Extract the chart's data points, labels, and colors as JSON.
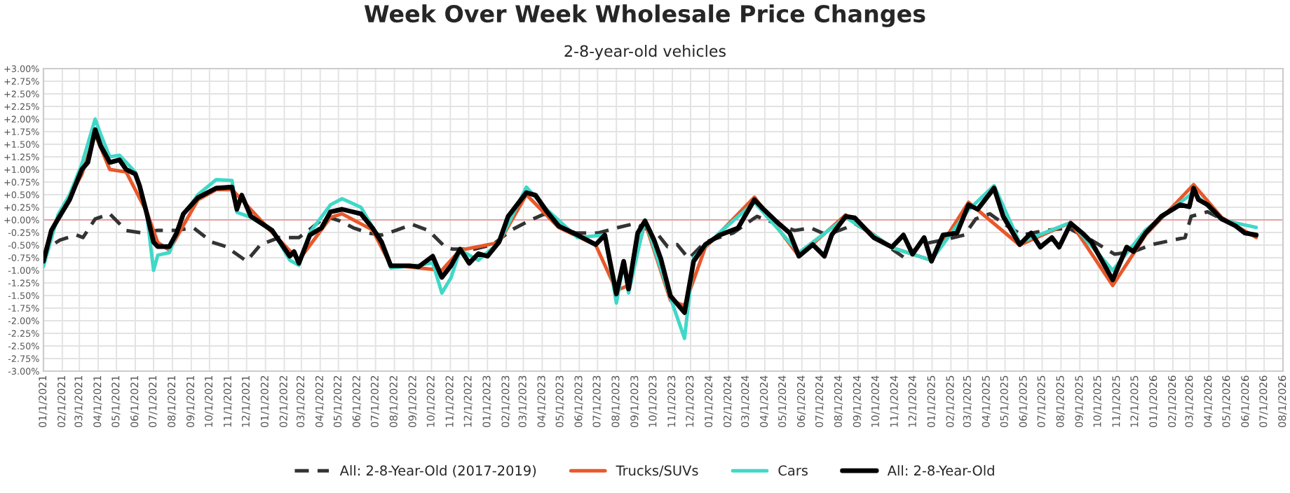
{
  "chart_data": {
    "type": "line",
    "title": "Week Over Week Wholesale Price Changes",
    "subtitle": "2-8-year-old vehicles",
    "xlim": [
      "2021-01-01",
      "2026-08-01"
    ],
    "xticks": [
      {
        "value": "2021-01-01",
        "label": "01/1/2021"
      },
      {
        "value": "2021-02-01",
        "label": "02/1/2021"
      },
      {
        "value": "2021-03-01",
        "label": "03/1/2021"
      },
      {
        "value": "2021-04-01",
        "label": "04/1/2021"
      },
      {
        "value": "2021-05-01",
        "label": "05/1/2021"
      },
      {
        "value": "2021-06-01",
        "label": "06/1/2021"
      },
      {
        "value": "2021-07-01",
        "label": "07/1/2021"
      },
      {
        "value": "2021-08-01",
        "label": "08/1/2021"
      },
      {
        "value": "2021-09-01",
        "label": "09/1/2021"
      },
      {
        "value": "2021-10-01",
        "label": "10/1/2021"
      },
      {
        "value": "2021-11-01",
        "label": "11/1/2021"
      },
      {
        "value": "2021-12-01",
        "label": "12/1/2021"
      },
      {
        "value": "2022-01-01",
        "label": "01/1/2022"
      },
      {
        "value": "2022-02-01",
        "label": "02/1/2022"
      },
      {
        "value": "2022-03-01",
        "label": "03/1/2022"
      },
      {
        "value": "2022-04-01",
        "label": "04/1/2022"
      },
      {
        "value": "2022-05-01",
        "label": "05/1/2022"
      },
      {
        "value": "2022-06-01",
        "label": "06/1/2022"
      },
      {
        "value": "2022-07-01",
        "label": "07/1/2022"
      },
      {
        "value": "2022-08-01",
        "label": "08/1/2022"
      },
      {
        "value": "2022-09-01",
        "label": "09/1/2022"
      },
      {
        "value": "2022-10-01",
        "label": "10/1/2022"
      },
      {
        "value": "2022-11-01",
        "label": "11/1/2022"
      },
      {
        "value": "2022-12-01",
        "label": "12/1/2022"
      },
      {
        "value": "2023-01-01",
        "label": "01/1/2023"
      },
      {
        "value": "2023-02-01",
        "label": "02/1/2023"
      },
      {
        "value": "2023-03-01",
        "label": "03/1/2023"
      },
      {
        "value": "2023-04-01",
        "label": "04/1/2023"
      },
      {
        "value": "2023-05-01",
        "label": "05/1/2023"
      },
      {
        "value": "2023-06-01",
        "label": "06/1/2023"
      },
      {
        "value": "2023-07-01",
        "label": "07/1/2023"
      },
      {
        "value": "2023-08-01",
        "label": "08/1/2023"
      },
      {
        "value": "2023-09-01",
        "label": "09/1/2023"
      },
      {
        "value": "2023-10-01",
        "label": "10/1/2023"
      },
      {
        "value": "2023-11-01",
        "label": "11/1/2023"
      },
      {
        "value": "2023-12-01",
        "label": "12/1/2023"
      },
      {
        "value": "2024-01-01",
        "label": "01/1/2024"
      },
      {
        "value": "2024-02-01",
        "label": "02/1/2024"
      },
      {
        "value": "2024-03-01",
        "label": "03/1/2024"
      },
      {
        "value": "2024-04-01",
        "label": "04/1/2024"
      },
      {
        "value": "2024-05-01",
        "label": "05/1/2024"
      },
      {
        "value": "2024-06-01",
        "label": "06/1/2024"
      },
      {
        "value": "2024-07-01",
        "label": "07/1/2024"
      },
      {
        "value": "2024-08-01",
        "label": "08/1/2024"
      },
      {
        "value": "2024-09-01",
        "label": "09/1/2024"
      },
      {
        "value": "2024-10-01",
        "label": "10/1/2024"
      },
      {
        "value": "2024-11-01",
        "label": "11/1/2024"
      },
      {
        "value": "2024-12-01",
        "label": "12/1/2024"
      },
      {
        "value": "2025-01-01",
        "label": "01/1/2025"
      },
      {
        "value": "2025-02-01",
        "label": "02/1/2025"
      },
      {
        "value": "2025-03-01",
        "label": "03/1/2025"
      },
      {
        "value": "2025-04-01",
        "label": "04/1/2025"
      },
      {
        "value": "2025-05-01",
        "label": "05/1/2025"
      },
      {
        "value": "2025-06-01",
        "label": "06/1/2025"
      },
      {
        "value": "2025-07-01",
        "label": "07/1/2025"
      },
      {
        "value": "2025-08-01",
        "label": "08/1/2025"
      },
      {
        "value": "2025-09-01",
        "label": "09/1/2025"
      },
      {
        "value": "2025-10-01",
        "label": "10/1/2025"
      },
      {
        "value": "2025-11-01",
        "label": "11/1/2025"
      },
      {
        "value": "2025-12-01",
        "label": "12/1/2025"
      },
      {
        "value": "2026-01-01",
        "label": "01/1/2026"
      },
      {
        "value": "2026-02-01",
        "label": "02/1/2026"
      },
      {
        "value": "2026-03-01",
        "label": "03/1/2026"
      },
      {
        "value": "2026-04-01",
        "label": "04/1/2026"
      },
      {
        "value": "2026-05-01",
        "label": "05/1/2026"
      },
      {
        "value": "2026-06-01",
        "label": "06/1/2026"
      },
      {
        "value": "2026-07-01",
        "label": "07/1/2026"
      },
      {
        "value": "2026-08-01",
        "label": "08/1/2026"
      }
    ],
    "ylim": [
      -3,
      3
    ],
    "yticks": [
      {
        "value": 3,
        "label": "+3.00%"
      },
      {
        "value": 2.75,
        "label": "+2.75%"
      },
      {
        "value": 2.5,
        "label": "+2.50%"
      },
      {
        "value": 2.25,
        "label": "+2.25%"
      },
      {
        "value": 2,
        "label": "+2.00%"
      },
      {
        "value": 1.75,
        "label": "+1.75%"
      },
      {
        "value": 1.5,
        "label": "+1.50%"
      },
      {
        "value": 1.25,
        "label": "+1.25%"
      },
      {
        "value": 1,
        "label": "+1.00%"
      },
      {
        "value": 0.75,
        "label": "+0.75%"
      },
      {
        "value": 0.5,
        "label": "+0.50%"
      },
      {
        "value": 0.25,
        "label": "+0.25%"
      },
      {
        "value": 0,
        "label": "+0.00%"
      },
      {
        "value": -0.25,
        "label": "-0.25%"
      },
      {
        "value": -0.5,
        "label": "-0.50%"
      },
      {
        "value": -0.75,
        "label": "-0.75%"
      },
      {
        "value": -1,
        "label": "-1.00%"
      },
      {
        "value": -1.25,
        "label": "-1.25%"
      },
      {
        "value": -1.5,
        "label": "-1.50%"
      },
      {
        "value": -1.75,
        "label": "-1.75%"
      },
      {
        "value": -2,
        "label": "-2.00%"
      },
      {
        "value": -2.25,
        "label": "-2.25%"
      },
      {
        "value": -2.5,
        "label": "-2.50%"
      },
      {
        "value": -2.75,
        "label": "-2.75%"
      },
      {
        "value": -3,
        "label": "-3.00%"
      }
    ],
    "grid": true,
    "legend": "bottom",
    "marker": "none",
    "ref_lines": [
      {
        "axis": "y",
        "value": 0,
        "color": "#e8a0a0"
      }
    ],
    "series": [
      {
        "name": "All: 2-8-Year-Old (2017-2019)",
        "color": "#333333",
        "line_style": "dashed",
        "x": [
          "2021-01-01",
          "2021-01-10",
          "2021-01-28",
          "2021-02-24",
          "2021-03-07",
          "2021-03-27",
          "2021-04-20",
          "2021-05-17",
          "2021-06-13",
          "2021-07-06",
          "2021-08-04",
          "2021-09-05",
          "2021-10-05",
          "2021-10-28",
          "2021-12-01",
          "2021-12-24",
          "2022-01-24",
          "2022-02-25",
          "2022-03-18",
          "2022-04-10",
          "2022-05-03",
          "2022-05-26",
          "2022-06-19",
          "2022-07-11",
          "2022-08-03",
          "2022-08-30",
          "2022-09-26",
          "2022-10-23",
          "2022-11-05",
          "2022-12-10",
          "2023-01-10",
          "2023-02-08",
          "2023-03-10",
          "2023-04-05",
          "2023-04-25",
          "2023-05-25",
          "2023-07-02",
          "2023-08-01",
          "2023-09-01",
          "2023-10-09",
          "2023-10-24",
          "2023-11-09",
          "2023-11-28",
          "2023-12-25",
          "2024-02-09",
          "2024-03-19",
          "2024-04-19",
          "2024-05-20",
          "2024-06-16",
          "2024-07-12",
          "2024-08-12",
          "2024-08-27",
          "2024-09-27",
          "2024-10-27",
          "2024-11-19",
          "2024-12-12",
          "2025-01-19",
          "2025-02-23",
          "2025-03-14",
          "2025-04-06",
          "2025-04-28",
          "2025-05-29",
          "2025-07-06",
          "2025-08-13",
          "2025-09-20",
          "2025-10-28",
          "2025-11-28",
          "2025-12-28",
          "2026-02-21",
          "2026-03-03",
          "2026-03-30",
          "2026-04-22"
        ],
        "values": [
          -0.82,
          -0.54,
          -0.4,
          -0.3,
          -0.35,
          0.02,
          0.12,
          -0.21,
          -0.26,
          -0.21,
          -0.21,
          -0.16,
          -0.44,
          -0.53,
          -0.82,
          -0.49,
          -0.35,
          -0.35,
          -0.16,
          0.07,
          -0.02,
          -0.16,
          -0.26,
          -0.3,
          -0.21,
          -0.09,
          -0.21,
          -0.53,
          -0.58,
          -0.58,
          -0.49,
          -0.21,
          -0.02,
          0.12,
          -0.07,
          -0.26,
          -0.26,
          -0.16,
          -0.07,
          -0.3,
          -0.53,
          -0.49,
          -0.77,
          -0.44,
          -0.26,
          0.07,
          -0.07,
          -0.21,
          -0.16,
          -0.3,
          -0.16,
          -0.07,
          -0.3,
          -0.58,
          -0.77,
          -0.49,
          -0.4,
          -0.3,
          0.02,
          0.12,
          -0.07,
          -0.3,
          -0.21,
          -0.16,
          -0.4,
          -0.68,
          -0.63,
          -0.49,
          -0.35,
          0.07,
          0.16,
          0.02
        ]
      },
      {
        "name": "Trucks/SUVs",
        "color": "#e8582a",
        "line_style": "solid",
        "x": [
          "2021-01-01",
          "2021-01-14",
          "2021-03-05",
          "2021-03-27",
          "2021-04-20",
          "2021-05-17",
          "2021-06-20",
          "2021-07-08",
          "2021-07-27",
          "2021-09-12",
          "2021-10-12",
          "2021-11-07",
          "2021-11-23",
          "2022-01-12",
          "2022-02-25",
          "2022-04-18",
          "2022-05-07",
          "2022-06-26",
          "2022-07-26",
          "2022-09-10",
          "2022-10-18",
          "2022-11-17",
          "2023-01-20",
          "2023-03-06",
          "2023-04-28",
          "2023-06-28",
          "2023-08-01",
          "2023-08-21",
          "2023-09-17",
          "2023-10-29",
          "2023-11-21",
          "2023-12-25",
          "2024-03-15",
          "2024-05-27",
          "2024-08-12",
          "2024-10-27",
          "2024-12-31",
          "2025-03-02",
          "2025-04-13",
          "2025-05-25",
          "2025-08-17",
          "2025-10-25",
          "2025-12-18",
          "2026-03-07",
          "2026-04-22",
          "2026-06-18"
        ],
        "values": [
          -0.75,
          -0.2,
          0.9,
          1.7,
          1.0,
          0.95,
          0.15,
          -0.45,
          -0.6,
          0.4,
          0.6,
          0.6,
          0.4,
          -0.25,
          -0.8,
          0.05,
          0.12,
          -0.2,
          -0.9,
          -0.95,
          -1.0,
          -0.6,
          -0.45,
          0.5,
          -0.15,
          -0.5,
          -1.4,
          -1.3,
          -0.05,
          -1.6,
          -1.7,
          -0.55,
          0.45,
          -0.72,
          0.1,
          -0.55,
          -0.8,
          0.35,
          null,
          -0.5,
          -0.05,
          -1.3,
          -0.3,
          0.7,
          0.05,
          -0.35
        ]
      },
      {
        "name": "Cars",
        "color": "#40d8c8",
        "line_style": "solid",
        "x": [
          "2021-01-01",
          "2021-01-25",
          "2021-02-13",
          "2021-03-05",
          "2021-03-27",
          "2021-04-05",
          "2021-04-20",
          "2021-05-06",
          "2021-06-01",
          "2021-06-20",
          "2021-07-01",
          "2021-07-08",
          "2021-07-27",
          "2021-08-19",
          "2021-09-12",
          "2021-10-12",
          "2021-11-07",
          "2021-11-15",
          "2021-12-08",
          "2022-01-12",
          "2022-02-10",
          "2022-02-25",
          "2022-03-15",
          "2022-04-18",
          "2022-05-07",
          "2022-06-07",
          "2022-07-11",
          "2022-07-26",
          "2022-09-10",
          "2022-10-03",
          "2022-10-18",
          "2022-11-02",
          "2022-11-17",
          "2022-12-17",
          "2023-01-20",
          "2023-03-06",
          "2023-04-09",
          "2023-05-29",
          "2023-07-13",
          "2023-08-01",
          "2023-08-13",
          "2023-08-21",
          "2023-09-17",
          "2023-10-29",
          "2023-11-21",
          "2023-12-06",
          "2024-01-18",
          "2024-03-15",
          "2024-05-27",
          "2024-08-12",
          "2024-09-27",
          "2024-10-27",
          "2024-12-31",
          "2025-03-02",
          "2025-04-13",
          "2025-05-25",
          "2025-08-17",
          "2025-10-25",
          "2025-12-18",
          "2026-03-07",
          "2026-04-22",
          "2026-06-18"
        ],
        "values": [
          -0.92,
          0.1,
          0.5,
          1.1,
          2.0,
          1.7,
          1.25,
          1.28,
          0.95,
          0.1,
          -1.0,
          -0.7,
          -0.65,
          0.1,
          0.5,
          0.8,
          0.78,
          0.15,
          0.05,
          -0.2,
          -0.8,
          -0.9,
          -0.25,
          0.3,
          0.42,
          0.25,
          -0.45,
          -0.95,
          -0.9,
          -0.85,
          -1.45,
          -1.15,
          -0.6,
          -0.8,
          -0.45,
          0.65,
          0.2,
          -0.35,
          -0.3,
          -1.65,
          -0.85,
          -1.45,
          0.0,
          -1.55,
          -2.35,
          -0.75,
          -0.25,
          0.35,
          -0.65,
          0.05,
          -0.3,
          -0.55,
          -0.8,
          0.2,
          0.68,
          -0.45,
          -0.05,
          -1.0,
          -0.2,
          0.55,
          0.0,
          -0.15
        ]
      },
      {
        "name": "All: 2-8-Year-Old",
        "color": "#000000",
        "line_style": "solid",
        "x": [
          "2021-01-01",
          "2021-01-14",
          "2021-01-25",
          "2021-02-13",
          "2021-03-05",
          "2021-03-15",
          "2021-03-27",
          "2021-04-05",
          "2021-04-20",
          "2021-05-06",
          "2021-05-17",
          "2021-06-01",
          "2021-06-08",
          "2021-06-20",
          "2021-07-01",
          "2021-07-08",
          "2021-07-27",
          "2021-08-08",
          "2021-08-19",
          "2021-09-12",
          "2021-10-12",
          "2021-11-07",
          "2021-11-15",
          "2021-11-23",
          "2021-12-08",
          "2022-01-01",
          "2022-01-12",
          "2022-02-10",
          "2022-02-17",
          "2022-02-25",
          "2022-03-15",
          "2022-04-03",
          "2022-04-18",
          "2022-05-07",
          "2022-06-07",
          "2022-06-26",
          "2022-07-11",
          "2022-07-26",
          "2022-08-26",
          "2022-09-10",
          "2022-10-03",
          "2022-10-18",
          "2022-11-02",
          "2022-11-17",
          "2022-12-02",
          "2022-12-17",
          "2023-01-01",
          "2023-01-20",
          "2023-02-04",
          "2023-03-06",
          "2023-03-21",
          "2023-04-09",
          "2023-04-28",
          "2023-05-29",
          "2023-06-28",
          "2023-07-13",
          "2023-08-01",
          "2023-08-13",
          "2023-08-21",
          "2023-09-05",
          "2023-09-17",
          "2023-10-02",
          "2023-10-13",
          "2023-10-29",
          "2023-11-21",
          "2023-12-06",
          "2023-12-25",
          "2024-01-18",
          "2024-02-17",
          "2024-03-15",
          "2024-03-30",
          "2024-04-19",
          "2024-05-12",
          "2024-05-27",
          "2024-06-19",
          "2024-07-08",
          "2024-07-20",
          "2024-08-12",
          "2024-08-27",
          "2024-09-27",
          "2024-10-27",
          "2024-11-15",
          "2024-11-30",
          "2024-12-19",
          "2024-12-31",
          "2025-01-19",
          "2025-02-11",
          "2025-03-02",
          "2025-03-17",
          "2025-04-13",
          "2025-04-28",
          "2025-05-25",
          "2025-06-13",
          "2025-06-28",
          "2025-07-17",
          "2025-07-29",
          "2025-08-17",
          "2025-09-05",
          "2025-09-20",
          "2025-10-25",
          "2025-11-17",
          "2025-11-28",
          "2025-12-18",
          "2026-01-13",
          "2026-02-13",
          "2026-02-28",
          "2026-03-07",
          "2026-03-15",
          "2026-03-30",
          "2026-04-22",
          "2026-05-15",
          "2026-05-30",
          "2026-06-18"
        ],
        "values": [
          -0.82,
          -0.21,
          0.02,
          0.4,
          1.0,
          1.14,
          1.79,
          1.47,
          1.14,
          1.19,
          1.0,
          0.91,
          0.68,
          0.12,
          -0.44,
          -0.53,
          -0.53,
          -0.26,
          0.12,
          0.44,
          0.63,
          0.65,
          0.21,
          0.49,
          0.07,
          -0.12,
          -0.21,
          -0.72,
          -0.63,
          -0.86,
          -0.3,
          -0.16,
          0.16,
          0.21,
          0.12,
          -0.16,
          -0.44,
          -0.91,
          -0.91,
          -0.93,
          -0.72,
          -1.14,
          -0.91,
          -0.58,
          -0.86,
          -0.67,
          -0.72,
          -0.44,
          0.07,
          0.54,
          0.49,
          0.16,
          -0.12,
          -0.3,
          -0.49,
          -0.3,
          -1.47,
          -0.82,
          -1.37,
          -0.26,
          -0.02,
          -0.4,
          -0.77,
          -1.51,
          -1.84,
          -0.82,
          -0.49,
          -0.3,
          -0.16,
          0.4,
          0.21,
          -0.02,
          -0.26,
          -0.72,
          -0.49,
          -0.72,
          -0.3,
          0.07,
          0.04,
          -0.35,
          -0.54,
          -0.3,
          -0.68,
          -0.35,
          -0.82,
          -0.3,
          -0.26,
          0.3,
          0.21,
          0.63,
          0.07,
          -0.49,
          -0.26,
          -0.54,
          -0.35,
          -0.54,
          -0.07,
          -0.26,
          -0.44,
          -1.19,
          -0.54,
          -0.63,
          -0.26,
          0.07,
          0.3,
          0.26,
          0.63,
          0.4,
          0.3,
          0.02,
          -0.12,
          -0.26,
          -0.3
        ]
      }
    ]
  }
}
